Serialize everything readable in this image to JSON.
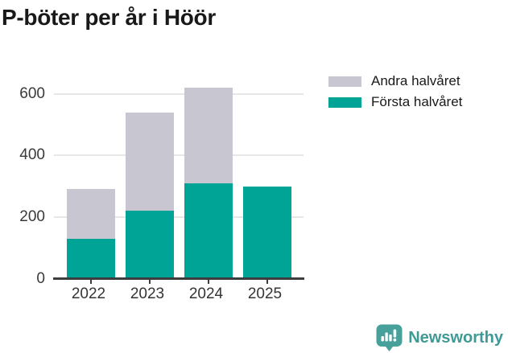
{
  "title": "P-böter per år i Höör",
  "chart_data": {
    "type": "bar",
    "stacked": true,
    "categories": [
      "2022",
      "2023",
      "2024",
      "2025"
    ],
    "series": [
      {
        "name": "Första halvåret",
        "color": "#00a497",
        "values": [
          130,
          220,
          310,
          300
        ]
      },
      {
        "name": "Andra halvåret",
        "color": "#c8c6d0",
        "values": [
          160,
          320,
          310,
          null
        ]
      }
    ],
    "title": "P-böter per år i Höör",
    "xlabel": "",
    "ylabel": "",
    "ylim": [
      0,
      660
    ],
    "yticks": [
      0,
      200,
      400,
      600
    ],
    "grid": true,
    "legend_position": "top-right",
    "legend_order": [
      "Andra halvåret",
      "Första halvåret"
    ]
  },
  "axis": {
    "gridline_color": "#e7e7e7",
    "axis_color": "#3d3d3d",
    "tick_label_color": "#3a3a3a"
  },
  "footer": {
    "brand": "Newsworthy",
    "brand_color": "#3e9a95",
    "icon": "bar-chart-speech-bubble-icon"
  }
}
